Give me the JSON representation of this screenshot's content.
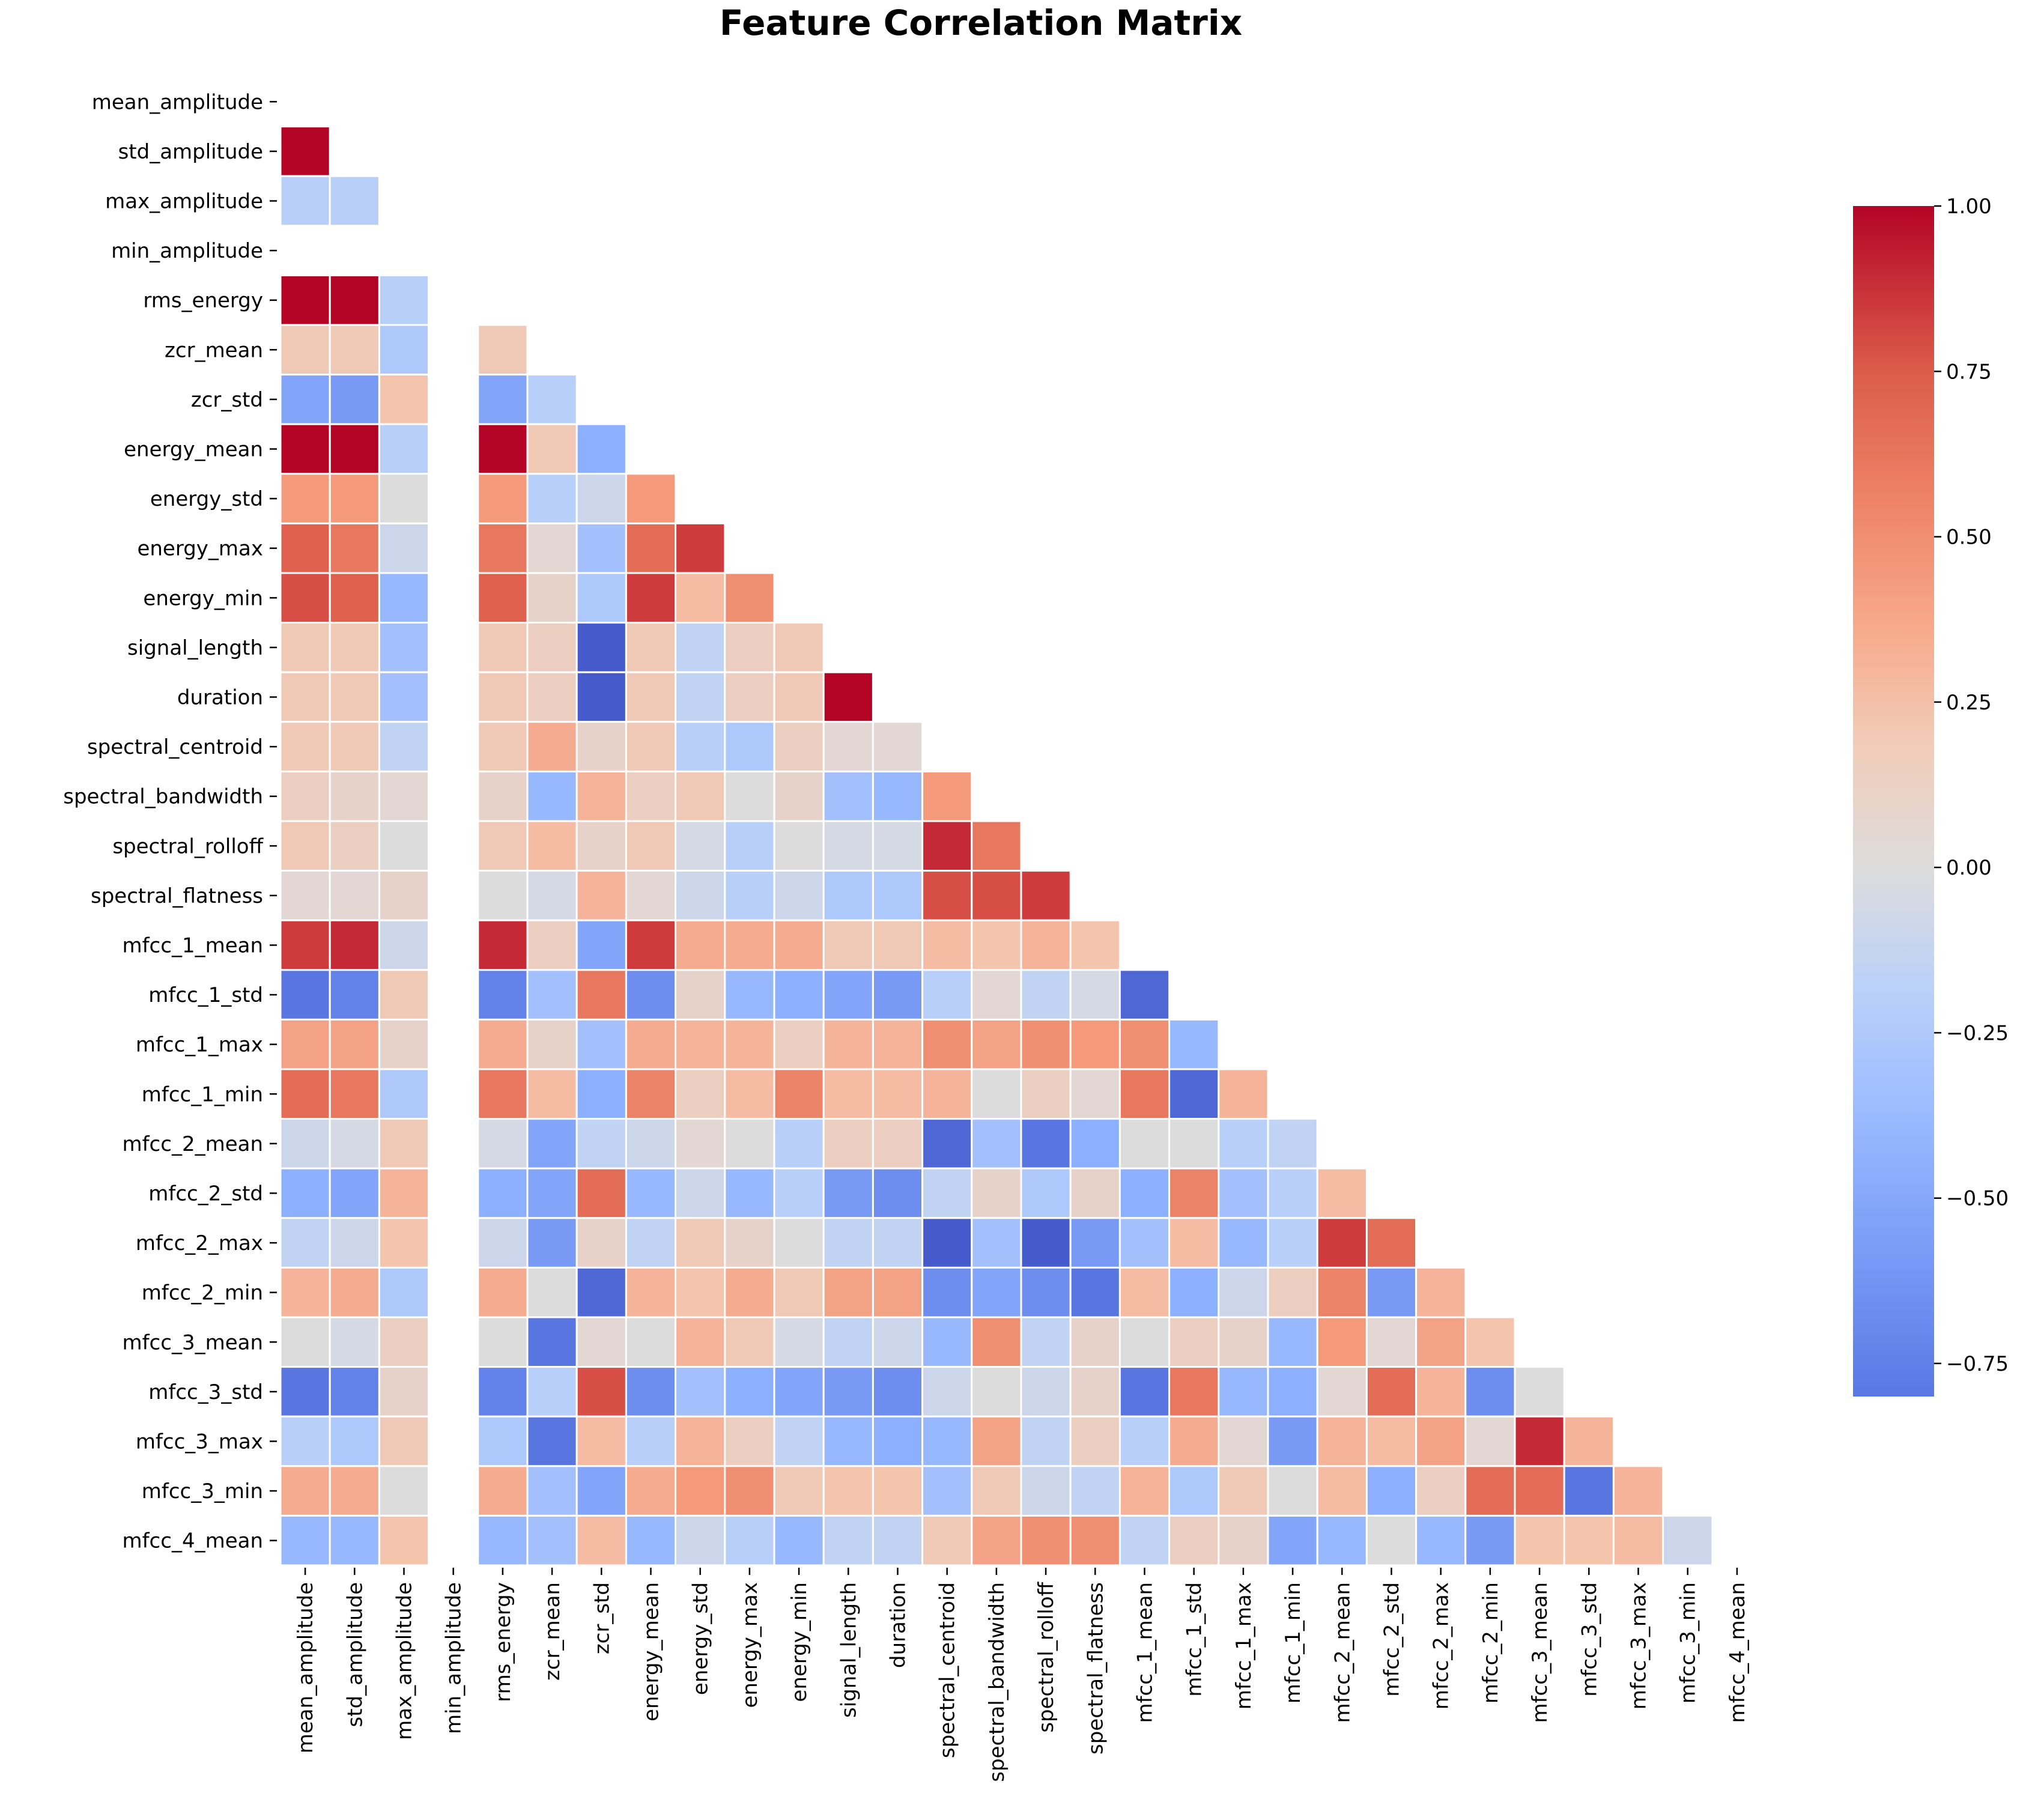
{
  "chart_data": {
    "type": "heatmap",
    "title": "Feature Correlation Matrix",
    "mask": "upper-triangle-including-diagonal",
    "features": [
      "mean_amplitude",
      "std_amplitude",
      "max_amplitude",
      "min_amplitude",
      "rms_energy",
      "zcr_mean",
      "zcr_std",
      "energy_mean",
      "energy_std",
      "energy_max",
      "energy_min",
      "signal_length",
      "duration",
      "spectral_centroid",
      "spectral_bandwidth",
      "spectral_rolloff",
      "spectral_flatness",
      "mfcc_1_mean",
      "mfcc_1_std",
      "mfcc_1_max",
      "mfcc_1_min",
      "mfcc_2_mean",
      "mfcc_2_std",
      "mfcc_2_max",
      "mfcc_2_min",
      "mfcc_3_mean",
      "mfcc_3_std",
      "mfcc_3_max",
      "mfcc_3_min",
      "mfcc_4_mean"
    ],
    "matrix": [
      [],
      [
        1.0
      ],
      [
        -0.2,
        -0.2
      ],
      [
        null,
        null,
        null
      ],
      [
        1.0,
        1.0,
        -0.2,
        null
      ],
      [
        0.2,
        0.2,
        -0.25,
        null,
        0.2
      ],
      [
        -0.45,
        -0.5,
        0.25,
        null,
        -0.45,
        -0.2
      ],
      [
        1.0,
        1.0,
        -0.2,
        null,
        1.0,
        0.2,
        -0.4
      ],
      [
        0.5,
        0.5,
        0.0,
        null,
        0.5,
        -0.2,
        -0.1,
        0.5
      ],
      [
        0.75,
        0.65,
        -0.1,
        null,
        0.65,
        0.05,
        -0.3,
        0.7,
        0.85
      ],
      [
        0.8,
        0.75,
        -0.35,
        null,
        0.75,
        0.1,
        -0.25,
        0.85,
        0.3,
        0.55
      ],
      [
        0.2,
        0.2,
        -0.3,
        null,
        0.2,
        0.15,
        -0.75,
        0.2,
        -0.15,
        0.15,
        0.2
      ],
      [
        0.2,
        0.2,
        -0.3,
        null,
        0.2,
        0.15,
        -0.75,
        0.2,
        -0.15,
        0.15,
        0.2,
        1.0
      ],
      [
        0.2,
        0.2,
        -0.15,
        null,
        0.2,
        0.4,
        0.1,
        0.2,
        -0.2,
        -0.25,
        0.15,
        0.05,
        0.05
      ],
      [
        0.15,
        0.1,
        0.05,
        null,
        0.1,
        -0.35,
        0.35,
        0.15,
        0.2,
        0.0,
        0.1,
        -0.3,
        -0.35,
        0.5
      ],
      [
        0.2,
        0.15,
        0.0,
        null,
        0.2,
        0.3,
        0.1,
        0.2,
        -0.05,
        -0.2,
        0.0,
        -0.05,
        -0.05,
        0.9,
        0.65
      ],
      [
        0.05,
        0.05,
        0.1,
        null,
        0.0,
        -0.05,
        0.35,
        0.05,
        -0.1,
        -0.2,
        -0.1,
        -0.25,
        -0.25,
        0.8,
        0.8,
        0.85
      ],
      [
        0.85,
        0.9,
        -0.1,
        null,
        0.9,
        0.15,
        -0.45,
        0.85,
        0.4,
        0.4,
        0.4,
        0.2,
        0.2,
        0.3,
        0.25,
        0.35,
        0.25
      ],
      [
        -0.65,
        -0.6,
        0.2,
        null,
        -0.6,
        -0.3,
        0.65,
        -0.55,
        0.1,
        -0.35,
        -0.4,
        -0.45,
        -0.5,
        -0.2,
        0.05,
        -0.15,
        -0.05,
        -0.7
      ],
      [
        0.45,
        0.45,
        0.1,
        null,
        0.4,
        0.1,
        -0.3,
        0.4,
        0.35,
        0.35,
        0.15,
        0.35,
        0.35,
        0.55,
        0.45,
        0.55,
        0.5,
        0.55,
        -0.35
      ],
      [
        0.7,
        0.65,
        -0.25,
        null,
        0.65,
        0.3,
        -0.4,
        0.6,
        0.15,
        0.3,
        0.6,
        0.3,
        0.3,
        0.35,
        0.0,
        0.15,
        0.05,
        0.65,
        -0.7,
        0.35
      ],
      [
        -0.1,
        -0.05,
        0.2,
        null,
        -0.05,
        -0.45,
        -0.15,
        -0.1,
        0.05,
        0.0,
        -0.2,
        0.15,
        0.15,
        -0.7,
        -0.3,
        -0.65,
        -0.4,
        0.0,
        0.0,
        -0.2,
        -0.15
      ],
      [
        -0.4,
        -0.45,
        0.35,
        null,
        -0.4,
        -0.45,
        0.7,
        -0.35,
        -0.1,
        -0.35,
        -0.2,
        -0.5,
        -0.55,
        -0.15,
        0.1,
        -0.25,
        0.1,
        -0.4,
        0.6,
        -0.3,
        -0.2,
        0.3
      ],
      [
        -0.15,
        -0.1,
        0.25,
        null,
        -0.1,
        -0.5,
        0.1,
        -0.15,
        0.2,
        0.1,
        0.0,
        -0.15,
        -0.15,
        -0.75,
        -0.3,
        -0.75,
        -0.5,
        -0.3,
        0.3,
        -0.35,
        -0.2,
        0.85,
        0.7
      ],
      [
        0.35,
        0.4,
        -0.25,
        null,
        0.4,
        0.0,
        -0.7,
        0.35,
        0.25,
        0.4,
        0.2,
        0.45,
        0.45,
        -0.55,
        -0.45,
        -0.55,
        -0.65,
        0.3,
        -0.4,
        -0.1,
        0.15,
        0.6,
        -0.5,
        0.35
      ],
      [
        0.0,
        -0.05,
        0.15,
        null,
        0.0,
        -0.65,
        0.05,
        0.0,
        0.35,
        0.2,
        -0.05,
        -0.15,
        -0.1,
        -0.35,
        0.55,
        -0.15,
        0.1,
        0.0,
        0.15,
        0.1,
        -0.35,
        0.5,
        0.05,
        0.45,
        0.25
      ],
      [
        -0.65,
        -0.6,
        0.1,
        null,
        -0.6,
        -0.2,
        0.8,
        -0.55,
        -0.3,
        -0.4,
        -0.45,
        -0.5,
        -0.55,
        -0.1,
        0.0,
        -0.1,
        0.1,
        -0.65,
        0.65,
        -0.35,
        -0.4,
        0.05,
        0.7,
        0.35,
        -0.55,
        0.0
      ],
      [
        -0.2,
        -0.25,
        0.2,
        null,
        -0.25,
        -0.65,
        0.3,
        -0.2,
        0.35,
        0.15,
        -0.15,
        -0.35,
        -0.4,
        -0.35,
        0.45,
        -0.15,
        0.15,
        -0.2,
        0.4,
        0.05,
        -0.5,
        0.35,
        0.3,
        0.45,
        0.05,
        0.9,
        0.35
      ],
      [
        0.4,
        0.4,
        0.0,
        null,
        0.4,
        -0.3,
        -0.45,
        0.4,
        0.5,
        0.55,
        0.2,
        0.25,
        0.25,
        -0.3,
        0.2,
        -0.1,
        -0.15,
        0.35,
        -0.25,
        0.2,
        0.0,
        0.3,
        -0.4,
        0.15,
        0.7,
        0.7,
        -0.65,
        0.35
      ],
      [
        -0.35,
        -0.35,
        0.25,
        null,
        -0.35,
        -0.3,
        0.3,
        -0.35,
        -0.1,
        -0.2,
        -0.35,
        -0.15,
        -0.15,
        0.2,
        0.45,
        0.55,
        0.55,
        -0.15,
        0.15,
        0.1,
        -0.45,
        -0.35,
        0.0,
        -0.35,
        -0.5,
        0.25,
        0.25,
        0.3,
        -0.1
      ]
    ],
    "colorbar": {
      "vmin": -0.8,
      "vmax": 1.0,
      "ticks": [
        "1.00",
        "0.75",
        "0.50",
        "0.25",
        "0.00",
        "−0.25",
        "−0.50",
        "−0.75"
      ],
      "tick_values": [
        1.0,
        0.75,
        0.5,
        0.25,
        0.0,
        -0.25,
        -0.5,
        -0.75
      ],
      "colormap": "coolwarm",
      "low_color": "#3b4cc0",
      "mid_color": "#dddddd",
      "high_color": "#b40426"
    }
  }
}
